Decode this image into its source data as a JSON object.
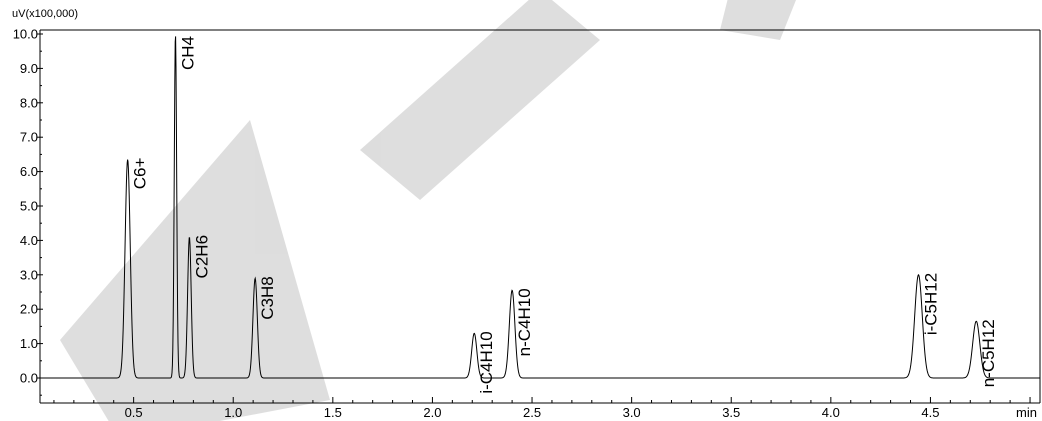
{
  "chart_data": {
    "type": "line",
    "title": "",
    "y_unit_label": "uV(x100,000)",
    "x_unit_label": "min",
    "xlim": [
      0.03,
      5.05
    ],
    "ylim": [
      -0.7,
      10.0
    ],
    "x_ticks": [
      0.5,
      1.0,
      1.5,
      2.0,
      2.5,
      3.0,
      3.5,
      4.0,
      4.5
    ],
    "x_tick_labels": [
      "0.5",
      "1.0",
      "1.5",
      "2.0",
      "2.5",
      "3.0",
      "3.5",
      "4.0",
      "4.5"
    ],
    "y_ticks": [
      0.0,
      1.0,
      2.0,
      3.0,
      4.0,
      5.0,
      6.0,
      7.0,
      8.0,
      9.0,
      10.0
    ],
    "y_tick_labels": [
      "0.0",
      "1.0",
      "2.0",
      "3.0",
      "4.0",
      "5.0",
      "6.0",
      "7.0",
      "8.0",
      "9.0",
      "10.0"
    ],
    "grid": false,
    "series": [
      {
        "peaks": [
          {
            "label": "C6+",
            "rt": 0.47,
            "height": 6.35,
            "width": 0.013
          },
          {
            "label": "CH4",
            "rt": 0.71,
            "height": 10.0,
            "width": 0.006
          },
          {
            "label": "C2H6",
            "rt": 0.78,
            "height": 4.1,
            "width": 0.009
          },
          {
            "label": "C3H8",
            "rt": 1.11,
            "height": 2.9,
            "width": 0.011
          },
          {
            "label": "i-C4H10",
            "rt": 2.21,
            "height": 1.3,
            "width": 0.013
          },
          {
            "label": "n-C4H10",
            "rt": 2.4,
            "height": 2.55,
            "width": 0.014
          },
          {
            "label": "i-C5H12",
            "rt": 4.44,
            "height": 3.0,
            "width": 0.019
          },
          {
            "label": "n-C5H12",
            "rt": 4.73,
            "height": 1.65,
            "width": 0.018
          }
        ]
      }
    ]
  },
  "colors": {
    "trace": "#000000",
    "axes": "#000000",
    "watermark": "#c8c8c8",
    "background": "#ffffff"
  }
}
